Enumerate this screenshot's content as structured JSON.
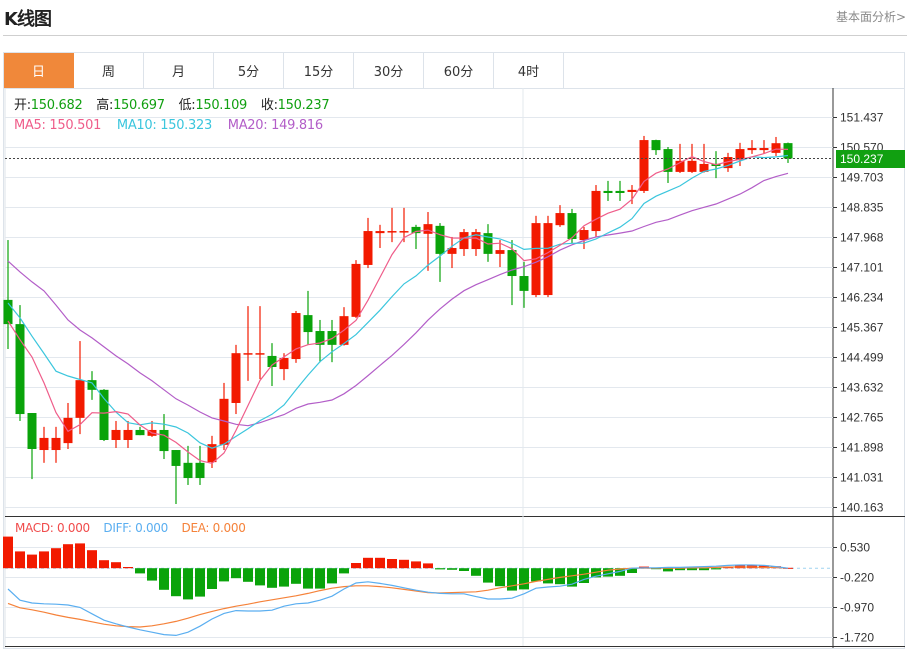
{
  "header": {
    "title": "K线图",
    "link": "基本面分析>"
  },
  "tabs": [
    "日",
    "周",
    "月",
    "5分",
    "15分",
    "30分",
    "60分",
    "4时"
  ],
  "active_tab": 0,
  "info": {
    "open_label": "开:",
    "open": "150.682",
    "high_label": "高:",
    "high": "150.697",
    "low_label": "低:",
    "low": "150.109",
    "close_label": "收:",
    "close": "150.237",
    "ma5": "MA5: 150.501",
    "ma10": "MA10: 150.323",
    "ma20": "MA20: 149.816"
  },
  "macd_legend": {
    "macd": "MACD: 0.000",
    "diff": "DIFF: 0.000",
    "dea": "DEA: 0.000"
  },
  "last_price": "150.237",
  "colors": {
    "up": "#f21a00",
    "down": "#0aa30a",
    "ma5": "#ef5d8a",
    "ma10": "#3bc6dd",
    "ma20": "#b35ec8",
    "diff": "#5aaef0",
    "dea": "#f5823a",
    "accent": "#f0883a"
  },
  "chart_data": {
    "type": "candlestick",
    "price_axis": {
      "ticks": [
        "151.437",
        "150.570",
        "149.703",
        "148.835",
        "147.968",
        "147.101",
        "146.234",
        "145.367",
        "144.499",
        "143.632",
        "142.765",
        "141.898",
        "141.031",
        "140.163"
      ],
      "range": [
        140.163,
        151.437
      ]
    },
    "macd_axis": {
      "ticks": [
        "0.530",
        "-0.220",
        "-0.970",
        "-1.720"
      ],
      "range": [
        -1.72,
        0.53
      ]
    },
    "ohlc": [
      [
        146.15,
        147.88,
        144.73,
        145.45
      ],
      [
        145.45,
        146.0,
        142.65,
        142.85
      ],
      [
        142.88,
        142.88,
        140.97,
        141.84
      ],
      [
        141.81,
        142.48,
        141.44,
        142.16
      ],
      [
        141.81,
        142.48,
        141.44,
        142.16
      ],
      [
        142.01,
        143.17,
        141.84,
        142.74
      ],
      [
        142.74,
        144.96,
        142.27,
        143.83
      ],
      [
        143.83,
        144.09,
        143.26,
        143.55
      ],
      [
        143.55,
        143.57,
        142.07,
        142.1
      ],
      [
        142.1,
        142.65,
        141.87,
        142.39
      ],
      [
        142.1,
        142.65,
        141.87,
        142.39
      ],
      [
        142.39,
        142.48,
        142.24,
        142.24
      ],
      [
        142.22,
        142.65,
        142.19,
        142.39
      ],
      [
        142.39,
        142.85,
        141.55,
        141.78
      ],
      [
        141.81,
        141.81,
        140.25,
        141.35
      ],
      [
        141.44,
        141.93,
        140.8,
        141.0
      ],
      [
        141.44,
        141.93,
        140.8,
        141.0
      ],
      [
        141.46,
        142.22,
        141.29,
        141.98
      ],
      [
        141.96,
        143.75,
        141.81,
        143.29
      ],
      [
        143.17,
        144.85,
        142.85,
        144.61
      ],
      [
        144.6,
        145.97,
        143.81,
        144.61
      ],
      [
        144.6,
        145.97,
        143.86,
        144.61
      ],
      [
        144.53,
        144.9,
        143.66,
        144.21
      ],
      [
        144.15,
        144.61,
        143.83,
        144.47
      ],
      [
        144.44,
        145.83,
        144.33,
        145.77
      ],
      [
        145.71,
        146.41,
        144.85,
        145.22
      ],
      [
        145.25,
        145.57,
        144.35,
        144.85
      ],
      [
        145.25,
        145.57,
        144.35,
        144.85
      ],
      [
        144.85,
        145.94,
        144.83,
        145.68
      ],
      [
        145.66,
        147.3,
        145.63,
        147.19
      ],
      [
        147.16,
        148.52,
        147.07,
        148.14
      ],
      [
        148.08,
        148.32,
        147.65,
        148.14
      ],
      [
        148.13,
        148.81,
        147.82,
        148.14
      ],
      [
        148.13,
        148.81,
        147.82,
        148.14
      ],
      [
        148.26,
        148.32,
        147.62,
        148.08
      ],
      [
        148.06,
        148.69,
        146.99,
        148.34
      ],
      [
        148.29,
        148.37,
        146.67,
        147.48
      ],
      [
        147.48,
        147.97,
        147.07,
        147.65
      ],
      [
        147.62,
        148.2,
        147.42,
        148.11
      ],
      [
        147.62,
        148.2,
        147.42,
        148.11
      ],
      [
        148.08,
        148.34,
        147.25,
        147.48
      ],
      [
        147.48,
        147.88,
        147.1,
        147.59
      ],
      [
        147.59,
        147.88,
        146.0,
        146.84
      ],
      [
        146.84,
        147.25,
        145.92,
        146.41
      ],
      [
        146.29,
        148.58,
        146.23,
        148.37
      ],
      [
        146.29,
        148.58,
        146.23,
        148.37
      ],
      [
        148.31,
        148.89,
        148.26,
        148.66
      ],
      [
        148.66,
        148.78,
        147.79,
        147.91
      ],
      [
        147.88,
        148.26,
        147.62,
        148.17
      ],
      [
        148.14,
        149.47,
        147.97,
        149.3
      ],
      [
        149.3,
        149.59,
        149.01,
        149.24
      ],
      [
        149.3,
        149.59,
        149.01,
        149.24
      ],
      [
        149.27,
        149.47,
        148.92,
        149.33
      ],
      [
        149.3,
        150.89,
        149.24,
        150.77
      ],
      [
        150.77,
        150.78,
        150.34,
        150.48
      ],
      [
        150.51,
        150.57,
        149.53,
        149.85
      ],
      [
        149.85,
        150.66,
        149.82,
        150.17
      ],
      [
        149.85,
        150.66,
        149.82,
        150.17
      ],
      [
        149.85,
        150.66,
        149.83,
        150.08
      ],
      [
        150.08,
        150.45,
        149.67,
        150.02
      ],
      [
        149.96,
        150.4,
        149.85,
        150.28
      ],
      [
        150.19,
        150.69,
        150.02,
        150.51
      ],
      [
        150.48,
        150.77,
        150.37,
        150.54
      ],
      [
        150.48,
        150.77,
        150.37,
        150.54
      ],
      [
        150.4,
        150.86,
        150.31,
        150.68
      ],
      [
        150.682,
        150.697,
        150.109,
        150.237
      ]
    ],
    "ma5_head": [
      145.54,
      145.0,
      144.5,
      143.75
    ],
    "ma10_head": [
      146.06,
      145.63,
      145.1,
      144.6,
      144.09,
      143.95,
      143.85,
      143.75,
      143.3
    ],
    "ma20_head": [
      147.27,
      146.96,
      146.67,
      146.41,
      146.0,
      145.57,
      145.28,
      145.05,
      144.79,
      144.53,
      144.3,
      144.04,
      143.81,
      143.55,
      143.29,
      143.11,
      142.91,
      142.74,
      142.65
    ],
    "macd_hist": [
      0.79,
      0.42,
      0.34,
      0.42,
      0.5,
      0.6,
      0.62,
      0.45,
      0.2,
      0.15,
      0.03,
      -0.13,
      -0.31,
      -0.54,
      -0.7,
      -0.78,
      -0.71,
      -0.52,
      -0.33,
      -0.25,
      -0.34,
      -0.43,
      -0.49,
      -0.46,
      -0.39,
      -0.51,
      -0.51,
      -0.38,
      -0.13,
      0.13,
      0.26,
      0.26,
      0.23,
      0.21,
      0.17,
      0.12,
      -0.03,
      -0.04,
      -0.07,
      -0.19,
      -0.36,
      -0.45,
      -0.56,
      -0.53,
      -0.33,
      -0.38,
      -0.4,
      -0.46,
      -0.37,
      -0.23,
      -0.21,
      -0.19,
      -0.12,
      0.04,
      -0.01,
      -0.08,
      -0.05,
      -0.05,
      -0.05,
      -0.03,
      0.04,
      0.07,
      0.07,
      0.07,
      0.05,
      0.01
    ],
    "diff": [
      -0.52,
      -0.8,
      -0.87,
      -0.89,
      -0.9,
      -0.92,
      -0.98,
      -1.14,
      -1.3,
      -1.39,
      -1.47,
      -1.54,
      -1.6,
      -1.66,
      -1.68,
      -1.6,
      -1.45,
      -1.27,
      -1.13,
      -1.06,
      -1.07,
      -1.07,
      -1.05,
      -0.95,
      -0.89,
      -0.87,
      -0.8,
      -0.7,
      -0.52,
      -0.37,
      -0.34,
      -0.38,
      -0.43,
      -0.49,
      -0.55,
      -0.6,
      -0.63,
      -0.64,
      -0.64,
      -0.71,
      -0.77,
      -0.77,
      -0.75,
      -0.64,
      -0.5,
      -0.47,
      -0.45,
      -0.4,
      -0.28,
      -0.2,
      -0.14,
      -0.08,
      0.0,
      0.01,
      0.01,
      0.02,
      0.02,
      0.03,
      0.04,
      0.05,
      0.07,
      0.08,
      0.08,
      0.07,
      0.04,
      0.0
    ],
    "dea": [
      -0.88,
      -0.99,
      -1.04,
      -1.1,
      -1.17,
      -1.23,
      -1.28,
      -1.34,
      -1.4,
      -1.44,
      -1.46,
      -1.47,
      -1.44,
      -1.39,
      -1.33,
      -1.25,
      -1.16,
      -1.08,
      -1.01,
      -0.95,
      -0.9,
      -0.84,
      -0.79,
      -0.74,
      -0.69,
      -0.63,
      -0.56,
      -0.5,
      -0.46,
      -0.44,
      -0.44,
      -0.46,
      -0.49,
      -0.53,
      -0.57,
      -0.61,
      -0.62,
      -0.61,
      -0.6,
      -0.59,
      -0.55,
      -0.49,
      -0.44,
      -0.39,
      -0.33,
      -0.28,
      -0.23,
      -0.19,
      -0.15,
      -0.1,
      -0.05,
      -0.02,
      0.0,
      0.0,
      0.0,
      0.0,
      0.0,
      0.01,
      0.01,
      0.02,
      0.03,
      0.03,
      0.03,
      0.02,
      0.02,
      0.0
    ]
  }
}
